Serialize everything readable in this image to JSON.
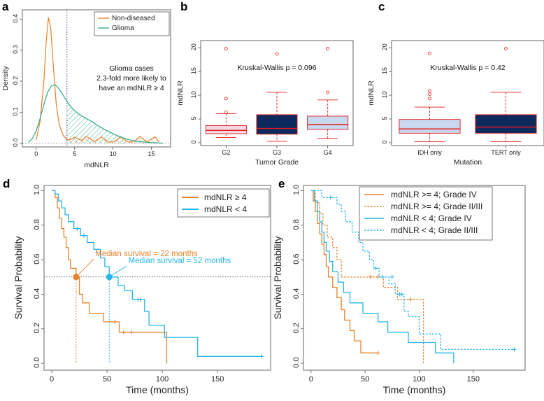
{
  "colors": {
    "orange": "#e8812a",
    "blue": "#25b5e8",
    "teal": "#2aa887",
    "navy": "#0d2a5e",
    "lightblue": "#c8d9ef",
    "pink": "#f3d7e2",
    "red": "#e21b1b"
  },
  "chart_data": [
    {
      "panel": "a",
      "type": "area",
      "xlabel": "mdNLR",
      "ylabel": "Density",
      "xticks": [
        "0",
        "5",
        "10",
        "15"
      ],
      "yticks": [
        "0.0",
        "0.1",
        "0.2",
        "0.3",
        "0.4"
      ],
      "xlim": [
        -1.8,
        17.5
      ],
      "ylim": [
        -0.012,
        0.43
      ],
      "cutoff": 4,
      "legend": [
        "Non-diseased",
        "Glioma"
      ],
      "annotation": [
        "Glioma cases",
        "2.3-fold more likely to",
        "have an mdNLR ≥ 4"
      ],
      "series": [
        {
          "name": "Non-diseased",
          "color": "orange",
          "x": [
            0,
            0.5,
            1,
            1.3,
            1.6,
            1.9,
            2.2,
            2.6,
            3,
            3.5,
            4,
            4.5,
            5,
            5.5,
            6,
            6.5,
            7,
            7.5,
            8,
            8.5,
            9,
            9.5,
            10,
            10.5,
            11,
            11.5,
            12,
            12.5,
            13,
            13.5,
            14,
            14.5,
            15,
            15.5,
            16
          ],
          "y": [
            0.01,
            0.07,
            0.2,
            0.33,
            0.405,
            0.37,
            0.26,
            0.13,
            0.06,
            0.025,
            0.012,
            0.012,
            0.02,
            0.013,
            0.01,
            0.022,
            0.015,
            0.006,
            0.012,
            0.02,
            0.01,
            0.004,
            0.004,
            0.01,
            0.022,
            0.012,
            0.004,
            0.004,
            0.01,
            0.022,
            0.012,
            0.004,
            0.014,
            0.02,
            0.004
          ]
        },
        {
          "name": "Glioma",
          "color": "teal",
          "x": [
            -1,
            -0.5,
            0,
            0.5,
            1,
            1.5,
            2,
            2.5,
            3,
            3.5,
            4,
            4.5,
            5,
            5.5,
            6,
            6.5,
            7,
            7.5,
            8,
            8.5,
            9,
            9.5,
            10,
            10.5,
            11,
            11.5,
            12,
            12.5,
            13,
            13.5,
            14,
            14.5,
            15,
            15.5,
            16,
            16.5
          ],
          "y": [
            0.003,
            0.015,
            0.04,
            0.08,
            0.125,
            0.165,
            0.185,
            0.188,
            0.175,
            0.155,
            0.135,
            0.118,
            0.105,
            0.095,
            0.087,
            0.08,
            0.073,
            0.066,
            0.058,
            0.05,
            0.043,
            0.037,
            0.031,
            0.025,
            0.02,
            0.016,
            0.012,
            0.009,
            0.007,
            0.005,
            0.004,
            0.003,
            0.002,
            0.0015,
            0.001,
            0.0005
          ]
        }
      ]
    },
    {
      "panel": "b",
      "type": "box",
      "xlabel": "Tumor Grade",
      "ylabel": "mdNLR",
      "yticks": [
        "0",
        "5",
        "10",
        "15",
        "20"
      ],
      "ylim": [
        -0.6,
        21.5
      ],
      "annotation": "Kruskal-Wallis p = 0.096",
      "categories": [
        "G2",
        "G3",
        "G4"
      ],
      "boxes": [
        {
          "q1": 1.9,
          "median": 2.6,
          "q3": 3.6,
          "whislo": 1.1,
          "whishi": 6.1,
          "fill": "pink",
          "outliers": [
            6.4,
            9.3,
            19.8
          ]
        },
        {
          "q1": 1.8,
          "median": 3.0,
          "q3": 5.9,
          "whislo": 0.3,
          "whishi": 10.6,
          "fill": "navy",
          "outliers": [
            18.7
          ]
        },
        {
          "q1": 2.8,
          "median": 3.8,
          "q3": 5.6,
          "whislo": 0.9,
          "whishi": 9.0,
          "fill": "lightblue",
          "outliers": [
            10.6,
            19.8
          ]
        }
      ]
    },
    {
      "panel": "c",
      "type": "box",
      "xlabel": "Mutation",
      "ylabel": "mdNLR",
      "yticks": [
        "0",
        "5",
        "10",
        "15",
        "20"
      ],
      "ylim": [
        -0.6,
        21.5
      ],
      "annotation": "Kruskal-Wallis p = 0.42",
      "categories": [
        "IDH only",
        "TERT only"
      ],
      "boxes": [
        {
          "q1": 2.0,
          "median": 2.9,
          "q3": 4.9,
          "whislo": 0.2,
          "whishi": 7.5,
          "fill": "lightblue",
          "outliers": [
            9.3,
            10.2,
            10.9,
            18.8
          ]
        },
        {
          "q1": 2.0,
          "median": 3.3,
          "q3": 5.9,
          "whislo": 0.2,
          "whishi": 10.6,
          "fill": "navy",
          "outliers": [
            19.8
          ]
        }
      ]
    },
    {
      "panel": "d",
      "type": "line",
      "xlabel": "Time (months)",
      "ylabel": "Survival Probability",
      "xticks": [
        "0",
        "50",
        "100",
        "150"
      ],
      "yticks": [
        "0.0",
        "0.2",
        "0.4",
        "0.6",
        "0.8",
        "1.0"
      ],
      "xlim": [
        -7,
        198
      ],
      "ylim": [
        -0.04,
        1.03
      ],
      "legend": [
        "mdNLR ≥ 4",
        "mdNLR < 4"
      ],
      "annotations": [
        {
          "text": "Median survival = 22 months",
          "color": "orange"
        },
        {
          "text": "Median survival = 52 months",
          "color": "blue"
        }
      ],
      "medians": [
        22,
        52
      ],
      "series": [
        {
          "name": "mdNLR ≥ 4",
          "color": "orange",
          "steps": [
            [
              0,
              1
            ],
            [
              3,
              0.96
            ],
            [
              5,
              0.9
            ],
            [
              7,
              0.84
            ],
            [
              9,
              0.78
            ],
            [
              11,
              0.73
            ],
            [
              13,
              0.67
            ],
            [
              15,
              0.6
            ],
            [
              17,
              0.55
            ],
            [
              22,
              0.5
            ],
            [
              25,
              0.4
            ],
            [
              28,
              0.35
            ],
            [
              34,
              0.29
            ],
            [
              47,
              0.24
            ],
            [
              61,
              0.18
            ],
            [
              104,
              0.0
            ]
          ],
          "censor": [
            [
              57,
              0.24
            ],
            [
              65,
              0.18
            ],
            [
              72,
              0.18
            ]
          ]
        },
        {
          "name": "mdNLR < 4",
          "color": "blue",
          "steps": [
            [
              0,
              1
            ],
            [
              3,
              0.98
            ],
            [
              6,
              0.94
            ],
            [
              9,
              0.9
            ],
            [
              12,
              0.86
            ],
            [
              15,
              0.82
            ],
            [
              20,
              0.78
            ],
            [
              26,
              0.74
            ],
            [
              32,
              0.7
            ],
            [
              38,
              0.66
            ],
            [
              44,
              0.61
            ],
            [
              48,
              0.56
            ],
            [
              52,
              0.5
            ],
            [
              60,
              0.45
            ],
            [
              66,
              0.42
            ],
            [
              73,
              0.37
            ],
            [
              84,
              0.3
            ],
            [
              88,
              0.22
            ],
            [
              102,
              0.15
            ],
            [
              132,
              0.04
            ]
          ],
          "censor": [
            [
              23,
              0.78
            ],
            [
              29,
              0.74
            ],
            [
              78,
              0.37
            ],
            [
              80,
              0.37
            ],
            [
              190,
              0.04
            ]
          ],
          "end": 190
        }
      ]
    },
    {
      "panel": "e",
      "type": "line",
      "xlabel": "Time (months)",
      "ylabel": "Survival Probability",
      "xticks": [
        "0",
        "50",
        "100",
        "150"
      ],
      "yticks": [
        "0.0",
        "0.2",
        "0.4",
        "0.6",
        "0.8",
        "1.0"
      ],
      "xlim": [
        -7,
        198
      ],
      "ylim": [
        -0.04,
        1.03
      ],
      "legend": [
        "mdNLR >= 4; Grade IV",
        "mdNLR >= 4; Grade II/III",
        "mdNLR < 4; Grade IV",
        "mdNLR < 4; Grade II/III"
      ],
      "series": [
        {
          "name": "mdNLR >= 4; Grade IV",
          "color": "orange",
          "dash": false,
          "steps": [
            [
              0,
              1
            ],
            [
              2,
              0.94
            ],
            [
              4,
              0.88
            ],
            [
              6,
              0.81
            ],
            [
              8,
              0.75
            ],
            [
              10,
              0.69
            ],
            [
              12,
              0.63
            ],
            [
              14,
              0.56
            ],
            [
              16,
              0.5
            ],
            [
              20,
              0.44
            ],
            [
              24,
              0.38
            ],
            [
              28,
              0.31
            ],
            [
              31,
              0.25
            ],
            [
              36,
              0.19
            ],
            [
              40,
              0.13
            ],
            [
              46,
              0.06
            ]
          ],
          "censor": [
            [
              62,
              0.06
            ]
          ],
          "end": 62
        },
        {
          "name": "mdNLR >= 4; Grade II/III",
          "color": "orange",
          "dash": true,
          "steps": [
            [
              0,
              1
            ],
            [
              4,
              0.93
            ],
            [
              8,
              0.87
            ],
            [
              11,
              0.8
            ],
            [
              15,
              0.73
            ],
            [
              20,
              0.67
            ],
            [
              24,
              0.6
            ],
            [
              28,
              0.5
            ],
            [
              67,
              0.44
            ],
            [
              80,
              0.37
            ],
            [
              104,
              0.0
            ]
          ],
          "censor": [
            [
              55,
              0.5
            ],
            [
              62,
              0.5
            ],
            [
              92,
              0.37
            ]
          ]
        },
        {
          "name": "mdNLR < 4; Grade IV",
          "color": "blue",
          "dash": false,
          "steps": [
            [
              0,
              1
            ],
            [
              3,
              0.94
            ],
            [
              6,
              0.88
            ],
            [
              8,
              0.82
            ],
            [
              10,
              0.76
            ],
            [
              12,
              0.7
            ],
            [
              14,
              0.65
            ],
            [
              17,
              0.59
            ],
            [
              20,
              0.53
            ],
            [
              25,
              0.47
            ],
            [
              30,
              0.41
            ],
            [
              36,
              0.35
            ],
            [
              48,
              0.29
            ],
            [
              62,
              0.24
            ],
            [
              71,
              0.18
            ],
            [
              90,
              0.12
            ],
            [
              115,
              0.06
            ],
            [
              132,
              0.0
            ]
          ],
          "censor": []
        },
        {
          "name": "mdNLR < 4; Grade II/III",
          "color": "blue",
          "dash": true,
          "steps": [
            [
              0,
              1
            ],
            [
              10,
              0.96
            ],
            [
              24,
              0.92
            ],
            [
              28,
              0.88
            ],
            [
              32,
              0.82
            ],
            [
              38,
              0.76
            ],
            [
              44,
              0.7
            ],
            [
              48,
              0.65
            ],
            [
              54,
              0.6
            ],
            [
              58,
              0.55
            ],
            [
              63,
              0.5
            ],
            [
              72,
              0.46
            ],
            [
              78,
              0.4
            ],
            [
              86,
              0.3
            ],
            [
              90,
              0.27
            ],
            [
              100,
              0.17
            ],
            [
              120,
              0.08
            ]
          ],
          "censor": [
            [
              18,
              0.96
            ],
            [
              60,
              0.55
            ],
            [
              66,
              0.5
            ],
            [
              75,
              0.5
            ],
            [
              82,
              0.4
            ],
            [
              84,
              0.4
            ],
            [
              188,
              0.08
            ]
          ],
          "end": 188
        }
      ]
    }
  ]
}
